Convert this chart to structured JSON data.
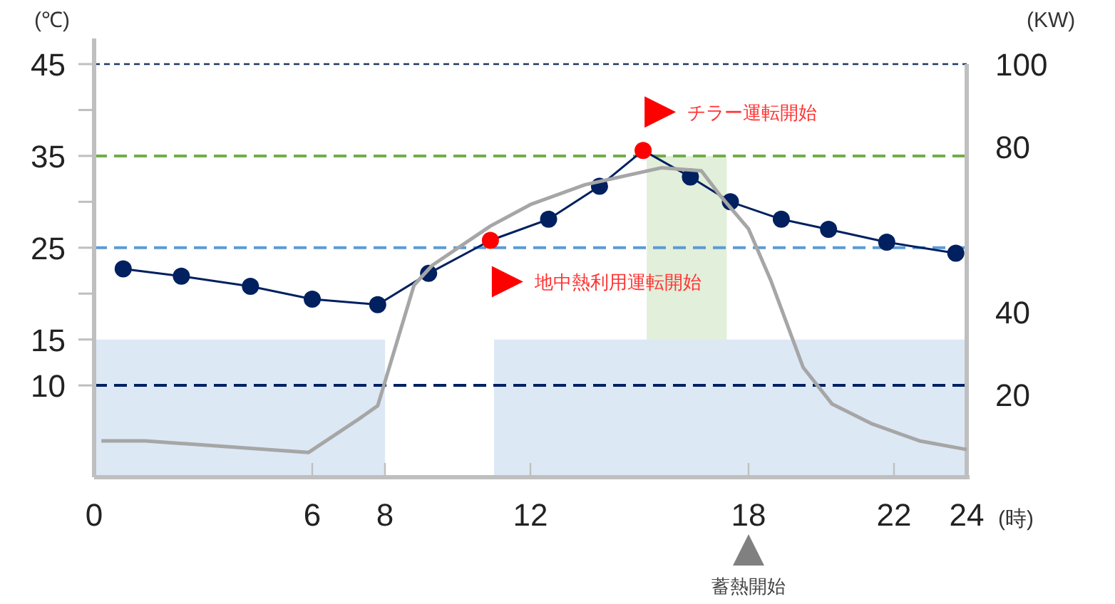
{
  "chart_data": {
    "type": "line",
    "xlabel": "(時)",
    "ylabel": "(℃)",
    "y2label": "(KW)",
    "xlim": [
      0,
      24
    ],
    "xticks": [
      0,
      6,
      8,
      12,
      18,
      22,
      24
    ],
    "ylim": [
      0,
      45
    ],
    "yticks": [
      10,
      15,
      {
        "value": 20,
        "label": null
      },
      25,
      {
        "value": 30,
        "label": null
      },
      35,
      {
        "value": 40,
        "label": null
      },
      45
    ],
    "y2lim": [
      0,
      100
    ],
    "y2ticks": [
      20,
      40,
      80,
      100
    ],
    "series": [
      {
        "type": "area",
        "color": "#dde8f5",
        "x": [
          0,
          8
        ],
        "values": [
          15,
          15
        ]
      },
      {
        "type": "area",
        "color": "#dde8f5",
        "x": [
          11,
          24
        ],
        "values": [
          15,
          15
        ]
      },
      {
        "type": "area",
        "color": "#e2efda",
        "x": [
          15.2,
          17.4
        ],
        "values": [
          35,
          35
        ]
      },
      {
        "color": "#002060",
        "marker": "circle",
        "x": [
          0.8,
          2.4,
          4.3,
          6.0,
          7.8,
          9.2,
          10.9,
          12.5,
          13.9,
          15.1,
          16.4,
          17.5,
          18.9,
          20.2,
          21.8,
          23.7
        ],
        "values": [
          22.7,
          21.9,
          20.8,
          19.4,
          18.8,
          22.2,
          25.8,
          28.1,
          31.7,
          35.6,
          32.7,
          30.0,
          28.1,
          27.0,
          25.6,
          24.4
        ],
        "colors": [
          "#002060",
          "#002060",
          "#002060",
          "#002060",
          "#002060",
          "#002060",
          "#ff0000",
          "#002060",
          "#002060",
          "#ff0000",
          "#002060",
          "#002060",
          "#002060",
          "#002060",
          "#002060",
          "#002060"
        ]
      },
      {
        "color": "#a6a6a6",
        "axis": "y2",
        "marker": "none",
        "x": [
          0.2,
          1.4,
          5.9,
          7.3,
          7.8,
          8.8,
          9.3,
          10.9,
          12.0,
          13.5,
          15.6,
          16.7,
          17.2,
          18.0,
          18.6,
          19.5,
          20.3,
          21.4,
          22.7,
          24.0
        ],
        "values": [
          8.8,
          8.8,
          6.0,
          14.2,
          17.3,
          46.5,
          51.3,
          60.8,
          66.0,
          70.8,
          74.9,
          74.2,
          68.4,
          60.1,
          47.9,
          26.6,
          17.7,
          12.9,
          8.8,
          6.7
        ]
      }
    ],
    "ref_lines": [
      {
        "axis": "y",
        "value": 45,
        "color": "#1f3864",
        "line_style": "dotted"
      },
      {
        "axis": "y",
        "value": 35,
        "color": "#70ad47",
        "line_style": "dashed"
      },
      {
        "axis": "y",
        "value": 25,
        "color": "#5b9bd5",
        "line_style": "dashed"
      },
      {
        "axis": "y",
        "value": 10,
        "color": "#002060",
        "line_style": "dashed"
      }
    ],
    "annotations": [
      {
        "text": "チラー運転開始",
        "x": 15.1,
        "y": 35.6
      },
      {
        "text": "地中熱利用運転開始",
        "x": 10.9,
        "y": 25.8
      },
      "蓄熱開始"
    ]
  }
}
